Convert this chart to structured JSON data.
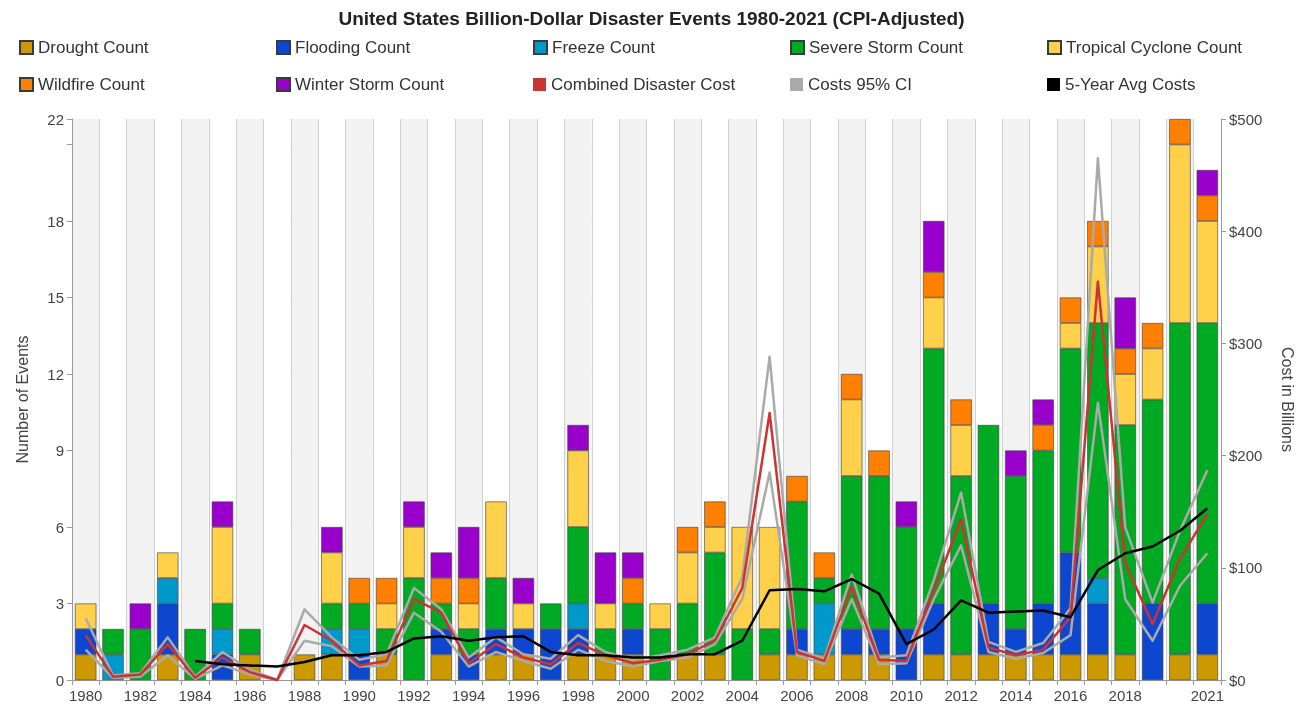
{
  "chart_data": {
    "type": "bar",
    "title": "United States Billion-Dollar Disaster Events 1980-2021 (CPI-Adjusted)",
    "ylabel": "Number of Events",
    "y2label": "Cost in Billions",
    "categories": [
      "1980",
      null,
      "1982",
      null,
      "1984",
      null,
      "1986",
      null,
      "1988",
      null,
      "1990",
      null,
      "1992",
      null,
      "1994",
      null,
      "1996",
      null,
      "1998",
      null,
      "2000",
      null,
      "2002",
      null,
      "2004",
      null,
      "2006",
      null,
      "2008",
      null,
      "2010",
      null,
      "2012",
      null,
      "2014",
      null,
      "2016",
      null,
      "2018",
      null,
      null,
      "2021"
    ],
    "stacked": true,
    "grid": true,
    "legend": "top",
    "marker": "none",
    "line_style": "solid",
    "ylim": [
      0,
      22
    ],
    "yticks": [
      0,
      3,
      6,
      9,
      12,
      15,
      18,
      {
        "value": 21,
        "label": null
      },
      22
    ],
    "y2lim": [
      0,
      500
    ],
    "y2ticks": [
      {
        "value": 0,
        "label": "$0"
      },
      {
        "value": 100,
        "label": "$100"
      },
      {
        "value": 200,
        "label": "$200"
      },
      {
        "value": 300,
        "label": "$300"
      },
      {
        "value": 400,
        "label": "$400"
      },
      {
        "value": 500,
        "label": "$500"
      }
    ],
    "series": [
      {
        "name": "Drought Count",
        "color": "#cc9a00",
        "values": [
          1,
          0,
          0,
          1,
          0,
          0,
          1,
          0,
          1,
          1,
          0,
          1,
          0,
          1,
          0,
          1,
          1,
          0,
          1,
          1,
          1,
          0,
          1,
          1,
          0,
          1,
          1,
          1,
          1,
          1,
          0,
          1,
          1,
          1,
          1,
          1,
          1,
          1,
          1,
          0,
          1,
          1
        ]
      },
      {
        "name": "Flooding Count",
        "color": "#0d47cf",
        "values": [
          1,
          0,
          0,
          2,
          0,
          1,
          0,
          0,
          0,
          0,
          1,
          0,
          0,
          1,
          1,
          1,
          1,
          2,
          1,
          0,
          1,
          0,
          0,
          0,
          0,
          0,
          1,
          0,
          1,
          1,
          2,
          2,
          0,
          2,
          1,
          2,
          4,
          2,
          0,
          3,
          0,
          2
        ]
      },
      {
        "name": "Freeze Count",
        "color": "#0099cc",
        "values": [
          0,
          1,
          0,
          1,
          0,
          1,
          0,
          0,
          0,
          1,
          1,
          0,
          0,
          0,
          0,
          0,
          0,
          0,
          1,
          0,
          0,
          0,
          0,
          0,
          0,
          0,
          0,
          2,
          0,
          0,
          0,
          0,
          0,
          0,
          0,
          0,
          0,
          1,
          0,
          0,
          0,
          0
        ]
      },
      {
        "name": "Severe Storm Count",
        "color": "#00aa22",
        "values": [
          0,
          1,
          2,
          0,
          2,
          1,
          1,
          0,
          0,
          1,
          1,
          1,
          4,
          1,
          1,
          2,
          0,
          1,
          3,
          1,
          1,
          2,
          2,
          4,
          2,
          1,
          5,
          1,
          6,
          6,
          4,
          10,
          7,
          7,
          6,
          6,
          8,
          10,
          9,
          8,
          13,
          11
        ]
      },
      {
        "name": "Tropical Cyclone Count",
        "color": "#ffd04a",
        "values": [
          1,
          0,
          0,
          1,
          0,
          3,
          0,
          0,
          0,
          2,
          0,
          1,
          2,
          0,
          1,
          3,
          1,
          0,
          3,
          1,
          0,
          1,
          2,
          1,
          4,
          4,
          0,
          0,
          3,
          0,
          0,
          2,
          2,
          0,
          0,
          0,
          1,
          3,
          2,
          2,
          7,
          4
        ]
      },
      {
        "name": "Wildfire Count",
        "color": "#ff8000",
        "values": [
          0,
          0,
          0,
          0,
          0,
          0,
          0,
          0,
          0,
          0,
          1,
          1,
          0,
          1,
          1,
          0,
          0,
          0,
          0,
          0,
          1,
          0,
          1,
          1,
          0,
          0,
          1,
          1,
          1,
          1,
          0,
          1,
          1,
          0,
          0,
          1,
          1,
          1,
          1,
          1,
          1,
          1
        ]
      },
      {
        "name": "Winter Storm Count",
        "color": "#9900cc",
        "values": [
          0,
          0,
          1,
          0,
          0,
          1,
          0,
          0,
          0,
          1,
          0,
          0,
          1,
          1,
          2,
          0,
          1,
          0,
          1,
          2,
          1,
          0,
          0,
          0,
          0,
          0,
          0,
          0,
          0,
          0,
          1,
          2,
          0,
          0,
          1,
          1,
          0,
          0,
          2,
          0,
          0,
          1
        ]
      },
      {
        "name": "Combined Disaster Cost",
        "type": "line",
        "axis": "y2",
        "color": "#cc3333",
        "values": [
          40,
          3,
          5,
          32,
          2,
          20,
          7,
          0,
          49,
          35,
          13,
          17,
          72,
          60,
          15,
          32,
          20,
          14,
          33,
          22,
          15,
          18,
          23,
          35,
          82,
          238,
          25,
          17,
          83,
          18,
          17,
          80,
          143,
          29,
          22,
          27,
          56,
          355,
          104,
          50,
          108,
          148
        ]
      },
      {
        "name": "Costs 95% CI",
        "type": "line",
        "axis": "y2",
        "color": "#aaaaaa",
        "values": [
          55,
          4,
          6,
          38,
          3,
          25,
          9,
          0,
          63,
          38,
          18,
          23,
          82,
          63,
          20,
          38,
          23,
          19,
          40,
          25,
          18,
          22,
          27,
          38,
          92,
          288,
          27,
          19,
          94,
          20,
          22,
          89,
          167,
          34,
          25,
          33,
          64,
          465,
          136,
          69,
          133,
          187
        ]
      },
      {
        "type": "line",
        "axis": "y2",
        "color": "#aaaaaa",
        "values": [
          27,
          2,
          3,
          22,
          1,
          13,
          5,
          0,
          35,
          30,
          12,
          13,
          60,
          43,
          12,
          25,
          17,
          10,
          27,
          17,
          12,
          17,
          20,
          32,
          72,
          185,
          22,
          14,
          72,
          14,
          15,
          72,
          120,
          25,
          19,
          24,
          40,
          247,
          72,
          35,
          84,
          113
        ]
      },
      {
        "name": "5-Year Avg Costs",
        "type": "line",
        "axis": "y2",
        "color": "#000000",
        "values": [
          null,
          null,
          null,
          null,
          17,
          14,
          13,
          12,
          16,
          22,
          22,
          25,
          37,
          39,
          35,
          38,
          39,
          25,
          22,
          22,
          20,
          20,
          23,
          23,
          35,
          80,
          81,
          79,
          90,
          77,
          32,
          45,
          71,
          60,
          61,
          62,
          56,
          98,
          113,
          119,
          133,
          153
        ]
      }
    ]
  }
}
